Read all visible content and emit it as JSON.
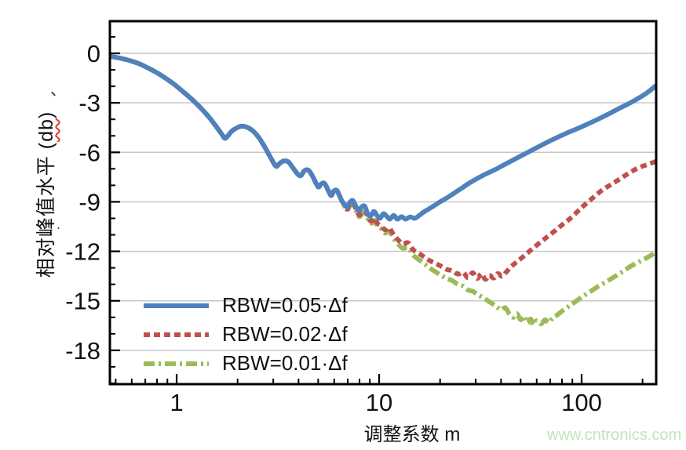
{
  "figure": {
    "x_axis_title": "调整系数 m",
    "y_axis_title": "相对峰值水平 (db)",
    "y_axis_title_prefix": "相对峰值水平 (",
    "y_axis_title_unit": "db",
    "y_axis_title_suffix": ")",
    "stray_marks": [
      "、",
      "."
    ],
    "watermark_text": "www.cntronics.com",
    "watermark_color": "#bfe6b8"
  },
  "chart_data": {
    "type": "line",
    "title": "",
    "xlabel": "调整系数 m",
    "ylabel": "相对峰值水平 (db)",
    "x_scale": "log",
    "xlim": [
      0.468,
      233.5
    ],
    "ylim": [
      -20.05,
      1.95
    ],
    "x_ticks_major": [
      1,
      10,
      100
    ],
    "x_tick_labels": [
      "1",
      "10",
      "100"
    ],
    "y_ticks_major": [
      0,
      -3,
      -6,
      -9,
      -12,
      -15,
      -18
    ],
    "y_tick_labels": [
      "0",
      "-3",
      "-6",
      "-9",
      "-12",
      "-15",
      "-18"
    ],
    "y_minor_step": 1,
    "grid": "horizontal-major-only",
    "grid_color": "#c7c7c7",
    "frame_color": "#000000",
    "legend_position": "lower-left-inside",
    "series": [
      {
        "name": "RBW=0.05·Δf",
        "color": "#4f81bd",
        "style": "solid",
        "points": [
          [
            0.47,
            -0.18
          ],
          [
            0.52,
            -0.28
          ],
          [
            0.58,
            -0.42
          ],
          [
            0.65,
            -0.62
          ],
          [
            0.72,
            -0.88
          ],
          [
            0.8,
            -1.18
          ],
          [
            0.88,
            -1.5
          ],
          [
            0.97,
            -1.87
          ],
          [
            1.07,
            -2.3
          ],
          [
            1.18,
            -2.75
          ],
          [
            1.3,
            -3.25
          ],
          [
            1.43,
            -3.8
          ],
          [
            1.56,
            -4.4
          ],
          [
            1.66,
            -4.85
          ],
          [
            1.73,
            -5.15
          ],
          [
            1.79,
            -5.0
          ],
          [
            1.86,
            -4.75
          ],
          [
            1.96,
            -4.55
          ],
          [
            2.08,
            -4.42
          ],
          [
            2.22,
            -4.47
          ],
          [
            2.38,
            -4.7
          ],
          [
            2.56,
            -5.15
          ],
          [
            2.76,
            -5.8
          ],
          [
            2.95,
            -6.45
          ],
          [
            3.1,
            -6.85
          ],
          [
            3.22,
            -6.68
          ],
          [
            3.38,
            -6.52
          ],
          [
            3.56,
            -6.58
          ],
          [
            3.76,
            -6.95
          ],
          [
            3.95,
            -7.3
          ],
          [
            4.1,
            -7.42
          ],
          [
            4.27,
            -7.12
          ],
          [
            4.47,
            -7.08
          ],
          [
            4.67,
            -7.4
          ],
          [
            4.87,
            -7.85
          ],
          [
            5.02,
            -8.1
          ],
          [
            5.18,
            -7.92
          ],
          [
            5.38,
            -7.88
          ],
          [
            5.6,
            -8.3
          ],
          [
            5.8,
            -8.62
          ],
          [
            5.97,
            -8.35
          ],
          [
            6.17,
            -8.3
          ],
          [
            6.37,
            -8.62
          ],
          [
            6.55,
            -8.95
          ],
          [
            6.75,
            -9.15
          ],
          [
            6.95,
            -9.32
          ],
          [
            7.18,
            -9.02
          ],
          [
            7.42,
            -8.92
          ],
          [
            7.7,
            -9.3
          ],
          [
            7.95,
            -9.55
          ],
          [
            8.2,
            -9.3
          ],
          [
            8.5,
            -9.27
          ],
          [
            8.8,
            -9.75
          ],
          [
            9.1,
            -9.85
          ],
          [
            9.42,
            -9.58
          ],
          [
            9.75,
            -9.82
          ],
          [
            10.1,
            -10.0
          ],
          [
            10.5,
            -9.72
          ],
          [
            10.9,
            -9.88
          ],
          [
            11.3,
            -10.05
          ],
          [
            11.8,
            -9.82
          ],
          [
            12.3,
            -10.05
          ],
          [
            12.9,
            -9.9
          ],
          [
            13.5,
            -10.05
          ],
          [
            14.2,
            -9.92
          ],
          [
            15.0,
            -10.0
          ],
          [
            15.8,
            -9.82
          ],
          [
            16.6,
            -9.62
          ],
          [
            17.5,
            -9.45
          ],
          [
            18.6,
            -9.25
          ],
          [
            20,
            -9.0
          ],
          [
            22,
            -8.7
          ],
          [
            25,
            -8.25
          ],
          [
            28,
            -7.85
          ],
          [
            32,
            -7.45
          ],
          [
            38,
            -7.0
          ],
          [
            45,
            -6.52
          ],
          [
            52,
            -6.12
          ],
          [
            60,
            -5.72
          ],
          [
            70,
            -5.3
          ],
          [
            82,
            -4.9
          ],
          [
            100,
            -4.45
          ],
          [
            125,
            -3.9
          ],
          [
            150,
            -3.4
          ],
          [
            180,
            -2.9
          ],
          [
            210,
            -2.4
          ],
          [
            233,
            -1.95
          ]
        ]
      },
      {
        "name": "RBW=0.02·Δf",
        "color": "#c0504d",
        "style": "dashed",
        "points": [
          [
            0.47,
            -0.18
          ],
          [
            0.52,
            -0.28
          ],
          [
            0.58,
            -0.42
          ],
          [
            0.65,
            -0.62
          ],
          [
            0.72,
            -0.88
          ],
          [
            0.8,
            -1.18
          ],
          [
            0.88,
            -1.5
          ],
          [
            0.97,
            -1.87
          ],
          [
            1.07,
            -2.3
          ],
          [
            1.18,
            -2.75
          ],
          [
            1.3,
            -3.25
          ],
          [
            1.43,
            -3.8
          ],
          [
            1.56,
            -4.4
          ],
          [
            1.66,
            -4.85
          ],
          [
            1.73,
            -5.15
          ],
          [
            1.79,
            -5.0
          ],
          [
            1.86,
            -4.75
          ],
          [
            1.96,
            -4.55
          ],
          [
            2.08,
            -4.42
          ],
          [
            2.22,
            -4.47
          ],
          [
            2.38,
            -4.7
          ],
          [
            2.56,
            -5.15
          ],
          [
            2.76,
            -5.8
          ],
          [
            2.95,
            -6.45
          ],
          [
            3.1,
            -6.85
          ],
          [
            3.22,
            -6.68
          ],
          [
            3.38,
            -6.52
          ],
          [
            3.56,
            -6.58
          ],
          [
            3.76,
            -6.95
          ],
          [
            3.95,
            -7.3
          ],
          [
            4.1,
            -7.42
          ],
          [
            4.27,
            -7.12
          ],
          [
            4.47,
            -7.08
          ],
          [
            4.67,
            -7.4
          ],
          [
            4.87,
            -7.85
          ],
          [
            5.02,
            -8.1
          ],
          [
            5.18,
            -7.92
          ],
          [
            5.38,
            -7.88
          ],
          [
            5.6,
            -8.3
          ],
          [
            5.8,
            -8.62
          ],
          [
            5.97,
            -8.35
          ],
          [
            6.17,
            -8.3
          ],
          [
            6.37,
            -8.62
          ],
          [
            6.55,
            -8.95
          ],
          [
            6.75,
            -9.22
          ],
          [
            6.95,
            -9.45
          ],
          [
            7.18,
            -9.15
          ],
          [
            7.45,
            -9.1
          ],
          [
            7.75,
            -9.55
          ],
          [
            8.0,
            -9.8
          ],
          [
            8.3,
            -9.55
          ],
          [
            8.6,
            -9.62
          ],
          [
            8.9,
            -10.05
          ],
          [
            9.2,
            -10.18
          ],
          [
            9.5,
            -9.98
          ],
          [
            9.8,
            -10.3
          ],
          [
            10.2,
            -10.45
          ],
          [
            10.7,
            -10.7
          ],
          [
            11.2,
            -10.58
          ],
          [
            11.8,
            -11.0
          ],
          [
            12.4,
            -11.3
          ],
          [
            13.1,
            -11.55
          ],
          [
            13.9,
            -11.48
          ],
          [
            14.7,
            -11.9
          ],
          [
            15.6,
            -12.1
          ],
          [
            16.6,
            -12.32
          ],
          [
            17.7,
            -12.55
          ],
          [
            18.9,
            -12.72
          ],
          [
            20.2,
            -12.9
          ],
          [
            21.6,
            -13.1
          ],
          [
            23,
            -13.18
          ],
          [
            24.5,
            -13.38
          ],
          [
            26,
            -13.28
          ],
          [
            27.5,
            -13.6
          ],
          [
            29,
            -13.3
          ],
          [
            30.5,
            -13.65
          ],
          [
            32,
            -13.35
          ],
          [
            33.5,
            -13.7
          ],
          [
            35,
            -13.45
          ],
          [
            36.8,
            -13.62
          ],
          [
            38.6,
            -13.35
          ],
          [
            40.5,
            -13.52
          ],
          [
            42.5,
            -13.25
          ],
          [
            44.6,
            -12.95
          ],
          [
            47,
            -12.72
          ],
          [
            50,
            -12.45
          ],
          [
            54,
            -12.1
          ],
          [
            58,
            -11.78
          ],
          [
            63,
            -11.42
          ],
          [
            68,
            -11.1
          ],
          [
            74,
            -10.75
          ],
          [
            80,
            -10.4
          ],
          [
            88,
            -10.0
          ],
          [
            100,
            -9.35
          ],
          [
            112,
            -8.82
          ],
          [
            126,
            -8.3
          ],
          [
            140,
            -7.95
          ],
          [
            155,
            -7.6
          ],
          [
            172,
            -7.25
          ],
          [
            190,
            -6.95
          ],
          [
            210,
            -6.75
          ],
          [
            233,
            -6.55
          ]
        ]
      },
      {
        "name": "RBW=0.01·Δf",
        "color": "#9bbb59",
        "style": "dashdot",
        "points": [
          [
            0.47,
            -0.18
          ],
          [
            0.52,
            -0.28
          ],
          [
            0.58,
            -0.42
          ],
          [
            0.65,
            -0.62
          ],
          [
            0.72,
            -0.88
          ],
          [
            0.8,
            -1.18
          ],
          [
            0.88,
            -1.5
          ],
          [
            0.97,
            -1.87
          ],
          [
            1.07,
            -2.3
          ],
          [
            1.18,
            -2.75
          ],
          [
            1.3,
            -3.25
          ],
          [
            1.43,
            -3.8
          ],
          [
            1.56,
            -4.4
          ],
          [
            1.66,
            -4.85
          ],
          [
            1.73,
            -5.15
          ],
          [
            1.79,
            -5.0
          ],
          [
            1.86,
            -4.75
          ],
          [
            1.96,
            -4.55
          ],
          [
            2.08,
            -4.42
          ],
          [
            2.22,
            -4.47
          ],
          [
            2.38,
            -4.7
          ],
          [
            2.56,
            -5.15
          ],
          [
            2.76,
            -5.8
          ],
          [
            2.95,
            -6.45
          ],
          [
            3.1,
            -6.85
          ],
          [
            3.22,
            -6.68
          ],
          [
            3.38,
            -6.52
          ],
          [
            3.56,
            -6.58
          ],
          [
            3.76,
            -6.95
          ],
          [
            3.95,
            -7.3
          ],
          [
            4.1,
            -7.42
          ],
          [
            4.27,
            -7.12
          ],
          [
            4.47,
            -7.08
          ],
          [
            4.67,
            -7.4
          ],
          [
            4.87,
            -7.85
          ],
          [
            5.02,
            -8.1
          ],
          [
            5.18,
            -7.92
          ],
          [
            5.38,
            -7.88
          ],
          [
            5.6,
            -8.3
          ],
          [
            5.8,
            -8.62
          ],
          [
            5.97,
            -8.35
          ],
          [
            6.17,
            -8.3
          ],
          [
            6.37,
            -8.62
          ],
          [
            6.55,
            -8.95
          ],
          [
            6.75,
            -9.28
          ],
          [
            6.95,
            -9.52
          ],
          [
            7.18,
            -9.22
          ],
          [
            7.45,
            -9.18
          ],
          [
            7.75,
            -9.62
          ],
          [
            8.0,
            -9.9
          ],
          [
            8.3,
            -9.65
          ],
          [
            8.6,
            -9.72
          ],
          [
            8.9,
            -10.15
          ],
          [
            9.2,
            -10.3
          ],
          [
            9.5,
            -10.12
          ],
          [
            9.8,
            -10.45
          ],
          [
            10.2,
            -10.62
          ],
          [
            10.7,
            -10.9
          ],
          [
            11.2,
            -10.78
          ],
          [
            11.8,
            -11.22
          ],
          [
            12.4,
            -11.55
          ],
          [
            13.1,
            -11.82
          ],
          [
            13.9,
            -11.78
          ],
          [
            14.7,
            -12.22
          ],
          [
            15.6,
            -12.48
          ],
          [
            16.6,
            -12.72
          ],
          [
            17.7,
            -13.0
          ],
          [
            18.9,
            -13.22
          ],
          [
            20.2,
            -13.45
          ],
          [
            21.6,
            -13.65
          ],
          [
            23,
            -13.78
          ],
          [
            24.5,
            -14.0
          ],
          [
            26,
            -14.12
          ],
          [
            27.5,
            -14.35
          ],
          [
            29,
            -14.42
          ],
          [
            30.5,
            -14.6
          ],
          [
            32,
            -14.75
          ],
          [
            34,
            -14.95
          ],
          [
            36,
            -15.15
          ],
          [
            38,
            -15.35
          ],
          [
            40,
            -15.55
          ],
          [
            42,
            -15.42
          ],
          [
            44,
            -15.8
          ],
          [
            46,
            -16.0
          ],
          [
            48,
            -15.78
          ],
          [
            50,
            -16.15
          ],
          [
            52,
            -15.92
          ],
          [
            54,
            -16.35
          ],
          [
            56,
            -16.1
          ],
          [
            58,
            -16.45
          ],
          [
            60,
            -16.2
          ],
          [
            63,
            -16.4
          ],
          [
            66,
            -16.15
          ],
          [
            69,
            -16.32
          ],
          [
            72,
            -16.02
          ],
          [
            76,
            -15.85
          ],
          [
            80,
            -15.62
          ],
          [
            86,
            -15.35
          ],
          [
            92,
            -15.1
          ],
          [
            100,
            -14.78
          ],
          [
            110,
            -14.45
          ],
          [
            120,
            -14.15
          ],
          [
            132,
            -13.85
          ],
          [
            145,
            -13.55
          ],
          [
            160,
            -13.22
          ],
          [
            175,
            -12.9
          ],
          [
            195,
            -12.6
          ],
          [
            215,
            -12.32
          ],
          [
            233,
            -12.05
          ]
        ]
      }
    ]
  }
}
